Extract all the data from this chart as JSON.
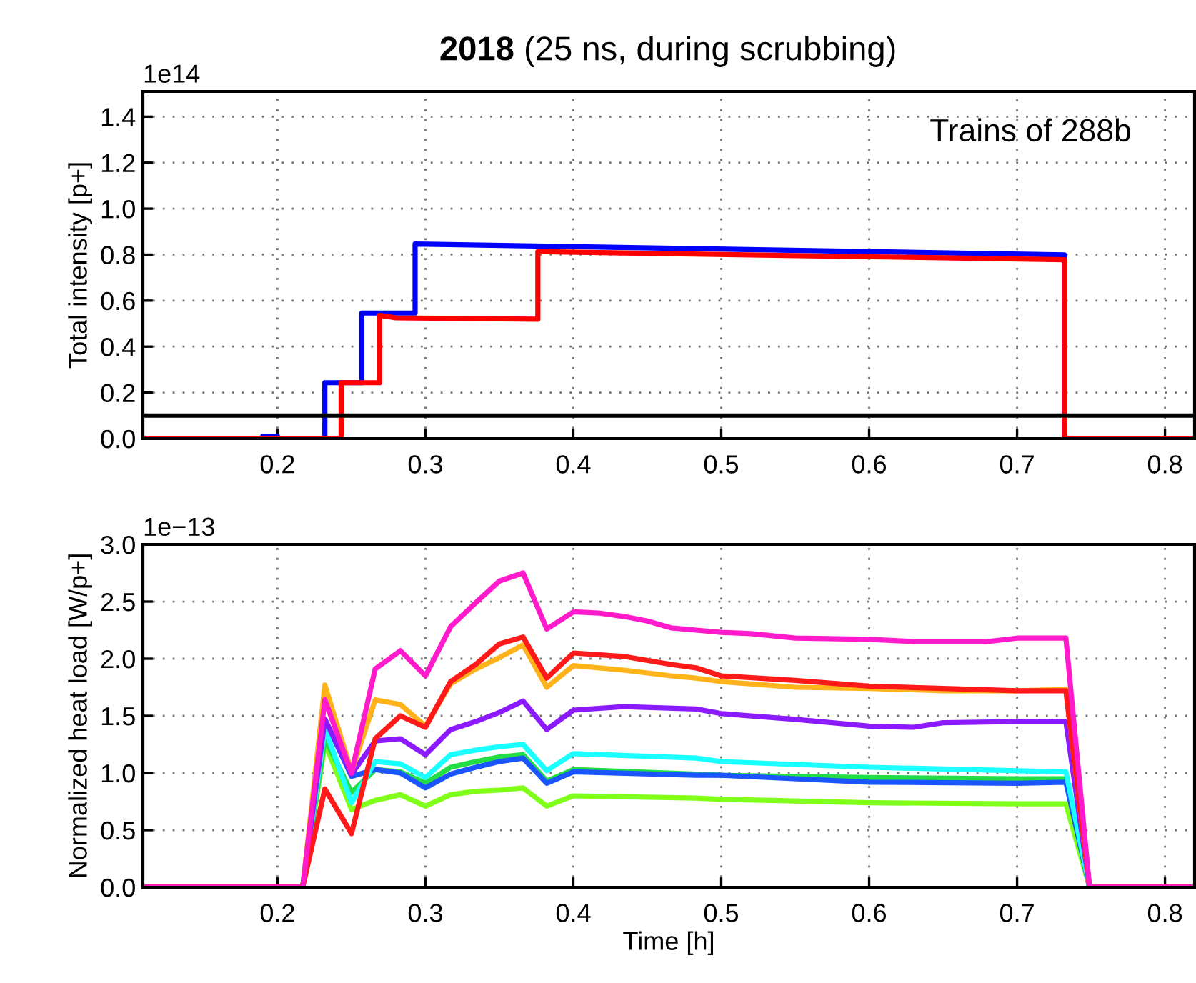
{
  "chart_data": [
    {
      "type": "line",
      "title": "2018 (25 ns, during scrubbing)",
      "ylabel": "Total intensity [p+]",
      "annotations": [
        "1e14",
        "Trains of 288b"
      ],
      "xlim": [
        0.109,
        0.82
      ],
      "xticks": [
        0.2,
        0.3,
        0.4,
        0.5,
        0.6,
        0.7,
        0.8
      ],
      "ylim": [
        0,
        1.51
      ],
      "yticks": [
        {
          "value": 0,
          "label": "0.0"
        },
        0.2,
        0.4,
        0.6,
        0.8,
        {
          "value": 1,
          "label": "1.0"
        },
        1.2,
        1.4
      ],
      "grid": true,
      "line_style": "solid",
      "marker": "none",
      "series": [
        {
          "color": "#0000ff",
          "x": [
            0.109,
            0.19,
            0.19,
            0.2,
            0.2,
            0.232,
            0.232,
            0.257,
            0.257,
            0.293,
            0.293,
            0.732,
            0.732,
            0.82
          ],
          "values": [
            0,
            0,
            0.01,
            0.01,
            0,
            0,
            0.243,
            0.243,
            0.546,
            0.546,
            0.846,
            0.799,
            0,
            0
          ]
        },
        {
          "color": "#ff0000",
          "x": [
            0.109,
            0.243,
            0.243,
            0.269,
            0.269,
            0.28,
            0.376,
            0.376,
            0.732,
            0.732,
            0.82
          ],
          "values": [
            0,
            0,
            0.243,
            0.243,
            0.536,
            0.525,
            0.519,
            0.813,
            0.778,
            0,
            0
          ]
        }
      ],
      "ref_lines": [
        {
          "axis": "y",
          "value": 0.1,
          "color": "#000000"
        }
      ]
    },
    {
      "type": "line",
      "xlabel": "Time [h]",
      "ylabel": "Normalized heat load [W/p+]",
      "annotations": [
        "1e−13"
      ],
      "xlim": [
        0.109,
        0.82
      ],
      "xticks": [
        0.2,
        0.3,
        0.4,
        0.5,
        0.6,
        0.7,
        0.8
      ],
      "ylim": [
        0,
        3.0
      ],
      "yticks": [
        {
          "value": 0,
          "label": "0.0"
        },
        0.5,
        {
          "value": 1,
          "label": "1.0"
        },
        1.5,
        {
          "value": 2,
          "label": "2.0"
        },
        2.5,
        {
          "value": 3,
          "label": "3.0"
        }
      ],
      "grid": true,
      "line_style": "solid",
      "marker": "none",
      "series": [
        {
          "color": "#80ff1a",
          "x": [
            0.109,
            0.217,
            0.232,
            0.25,
            0.266,
            0.283,
            0.3,
            0.317,
            0.334,
            0.35,
            0.366,
            0.382,
            0.4,
            0.483,
            0.5,
            0.6,
            0.7,
            0.733,
            0.749,
            0.82
          ],
          "values": [
            0,
            0,
            1.26,
            0.68,
            0.76,
            0.81,
            0.71,
            0.81,
            0.84,
            0.85,
            0.87,
            0.71,
            0.8,
            0.78,
            0.77,
            0.74,
            0.73,
            0.73,
            0,
            0
          ]
        },
        {
          "color": "#22dd44",
          "x": [
            0.109,
            0.217,
            0.232,
            0.25,
            0.266,
            0.283,
            0.3,
            0.317,
            0.334,
            0.35,
            0.366,
            0.382,
            0.4,
            0.483,
            0.5,
            0.6,
            0.7,
            0.733,
            0.749,
            0.82
          ],
          "values": [
            0,
            0,
            1.3,
            0.83,
            1.03,
            1.01,
            0.91,
            1.05,
            1.1,
            1.14,
            1.16,
            0.93,
            1.03,
            0.99,
            0.98,
            0.96,
            0.95,
            0.95,
            0,
            0
          ]
        },
        {
          "color": "#1a55ff",
          "x": [
            0.109,
            0.217,
            0.232,
            0.25,
            0.266,
            0.283,
            0.3,
            0.317,
            0.334,
            0.35,
            0.366,
            0.382,
            0.4,
            0.483,
            0.5,
            0.6,
            0.7,
            0.733,
            0.749,
            0.82
          ],
          "values": [
            0,
            0,
            1.47,
            0.97,
            1.03,
            1.0,
            0.87,
            0.99,
            1.05,
            1.1,
            1.13,
            0.91,
            1.01,
            0.98,
            0.98,
            0.92,
            0.91,
            0.92,
            0,
            0
          ]
        },
        {
          "color": "#1affff",
          "x": [
            0.109,
            0.217,
            0.232,
            0.25,
            0.266,
            0.283,
            0.3,
            0.317,
            0.334,
            0.35,
            0.366,
            0.382,
            0.4,
            0.483,
            0.5,
            0.6,
            0.7,
            0.733,
            0.749,
            0.82
          ],
          "values": [
            0,
            0,
            1.39,
            0.74,
            1.1,
            1.08,
            0.96,
            1.16,
            1.2,
            1.23,
            1.25,
            1.02,
            1.17,
            1.13,
            1.1,
            1.05,
            1.02,
            1.01,
            0,
            0
          ]
        },
        {
          "color": "#8c1aff",
          "x": [
            0.109,
            0.217,
            0.232,
            0.25,
            0.266,
            0.283,
            0.3,
            0.317,
            0.334,
            0.35,
            0.366,
            0.382,
            0.4,
            0.434,
            0.483,
            0.5,
            0.55,
            0.6,
            0.63,
            0.65,
            0.7,
            0.733,
            0.749,
            0.82
          ],
          "values": [
            0,
            0,
            1.47,
            0.99,
            1.28,
            1.3,
            1.16,
            1.38,
            1.45,
            1.53,
            1.63,
            1.38,
            1.55,
            1.58,
            1.56,
            1.52,
            1.47,
            1.41,
            1.4,
            1.44,
            1.45,
            1.45,
            0,
            0
          ]
        },
        {
          "color": "#ffb31a",
          "x": [
            0.109,
            0.217,
            0.232,
            0.25,
            0.266,
            0.283,
            0.3,
            0.317,
            0.334,
            0.35,
            0.366,
            0.382,
            0.4,
            0.434,
            0.466,
            0.483,
            0.5,
            0.55,
            0.6,
            0.65,
            0.7,
            0.733,
            0.749,
            0.82
          ],
          "values": [
            0,
            0,
            1.77,
            1.01,
            1.64,
            1.6,
            1.41,
            1.78,
            1.91,
            2.01,
            2.12,
            1.75,
            1.94,
            1.9,
            1.85,
            1.83,
            1.8,
            1.75,
            1.74,
            1.72,
            1.72,
            1.73,
            0,
            0
          ]
        },
        {
          "color": "#ff1a1a",
          "x": [
            0.109,
            0.217,
            0.232,
            0.25,
            0.266,
            0.283,
            0.3,
            0.317,
            0.334,
            0.35,
            0.366,
            0.382,
            0.4,
            0.434,
            0.466,
            0.483,
            0.5,
            0.55,
            0.6,
            0.65,
            0.7,
            0.733,
            0.749,
            0.82
          ],
          "values": [
            0,
            0,
            0.86,
            0.47,
            1.3,
            1.5,
            1.4,
            1.8,
            1.95,
            2.13,
            2.19,
            1.83,
            2.05,
            2.02,
            1.95,
            1.92,
            1.85,
            1.81,
            1.76,
            1.74,
            1.72,
            1.72,
            0,
            0
          ]
        },
        {
          "color": "#ff1acc",
          "x": [
            0.109,
            0.217,
            0.232,
            0.25,
            0.266,
            0.283,
            0.3,
            0.317,
            0.334,
            0.35,
            0.366,
            0.382,
            0.4,
            0.417,
            0.434,
            0.45,
            0.466,
            0.483,
            0.5,
            0.52,
            0.55,
            0.6,
            0.63,
            0.68,
            0.7,
            0.733,
            0.749,
            0.82
          ],
          "values": [
            0,
            0,
            1.64,
            1.0,
            1.91,
            2.07,
            1.85,
            2.28,
            2.49,
            2.68,
            2.75,
            2.26,
            2.41,
            2.4,
            2.37,
            2.33,
            2.27,
            2.25,
            2.23,
            2.22,
            2.18,
            2.17,
            2.15,
            2.15,
            2.18,
            2.18,
            0,
            0
          ]
        }
      ]
    }
  ]
}
